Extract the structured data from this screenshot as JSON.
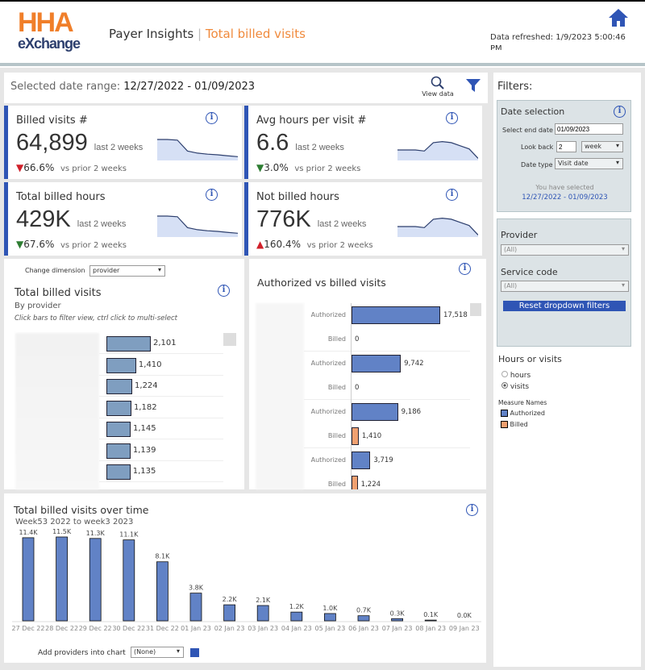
{
  "header": {
    "logo_top": "HHA",
    "logo_bottom": "eXchange",
    "app": "Payer Insights",
    "page": "Total billed visits",
    "refreshed": "Data refreshed: 1/9/2023 5:00:46 PM"
  },
  "toolbar": {
    "range_label": "Selected date range:",
    "range_value": "12/27/2022 - 01/09/2023",
    "view_data": "View data"
  },
  "kpis": [
    {
      "title": "Billed visits #",
      "value": "64,899",
      "period": "last 2 weeks",
      "change": "66.6%",
      "dir": "down",
      "color": "#d0202a",
      "compare": "vs prior 2 weeks",
      "spark": [
        1,
        1,
        0.97,
        0.45,
        0.35,
        0.3,
        0.27,
        0.22,
        0.18
      ]
    },
    {
      "title": "Avg hours per visit #",
      "value": "6.6",
      "period": "last 2 weeks",
      "change": "3.0%",
      "dir": "down",
      "color": "#2e7d32",
      "compare": "vs prior 2 weeks",
      "spark": [
        0.5,
        0.5,
        0.5,
        0.45,
        0.85,
        0.9,
        0.85,
        0.7,
        0.55,
        0.1
      ]
    },
    {
      "title": "Total billed hours",
      "value": "429K",
      "period": "last 2 weeks",
      "change": "67.6%",
      "dir": "down",
      "color": "#2e7d32",
      "compare": "vs prior 2 weeks",
      "spark": [
        1,
        1,
        0.97,
        0.45,
        0.35,
        0.3,
        0.27,
        0.22,
        0.18
      ]
    },
    {
      "title": "Not billed hours",
      "value": "776K",
      "period": "last 2 weeks",
      "change": "160.4%",
      "dir": "up",
      "color": "#d0202a",
      "compare": "vs prior 2 weeks",
      "spark": [
        0.5,
        0.5,
        0.5,
        0.45,
        0.85,
        0.9,
        0.85,
        0.7,
        0.55,
        0.1
      ]
    }
  ],
  "provider_chart": {
    "dimension_label": "Change dimension",
    "dimension_value": "provider",
    "title": "Total billed visits",
    "subtitle": "By provider",
    "hint": "Click bars to filter view, ctrl click to multi-select",
    "values": [
      2101,
      1410,
      1224,
      1182,
      1145,
      1139,
      1135
    ],
    "labels": [
      "2,101",
      "1,410",
      "1,224",
      "1,182",
      "1,145",
      "1,139",
      "1,135"
    ]
  },
  "auth_chart": {
    "title": "Authorized vs billed visits",
    "rows": [
      {
        "measure": "Authorized",
        "value": 17518,
        "label": "17,518"
      },
      {
        "measure": "Billed",
        "value": 0,
        "label": "0"
      },
      {
        "measure": "Authorized",
        "value": 9742,
        "label": "9,742"
      },
      {
        "measure": "Billed",
        "value": 0,
        "label": "0"
      },
      {
        "measure": "Authorized",
        "value": 9186,
        "label": "9,186"
      },
      {
        "measure": "Billed",
        "value": 1410,
        "label": "1,410"
      },
      {
        "measure": "Authorized",
        "value": 3719,
        "label": "3,719"
      },
      {
        "measure": "Billed",
        "value": 1224,
        "label": "1,224"
      }
    ]
  },
  "chart_data": {
    "type": "bar",
    "title": "Total billed visits over time",
    "subtitle": "Week53 2022 to week3 2023",
    "categories": [
      "27 Dec 22",
      "28 Dec 22",
      "29 Dec 22",
      "30 Dec 22",
      "31 Dec 22",
      "01 Jan 23",
      "02 Jan 23",
      "03 Jan 23",
      "04 Jan 23",
      "05 Jan 23",
      "06 Jan 23",
      "07 Jan 23",
      "08 Jan 23",
      "09 Jan 23"
    ],
    "values": [
      11400,
      11500,
      11300,
      11100,
      8100,
      3800,
      2200,
      2100,
      1200,
      1000,
      700,
      300,
      100,
      0
    ],
    "labels": [
      "11.4K",
      "11.5K",
      "11.3K",
      "11.1K",
      "8.1K",
      "3.8K",
      "2.2K",
      "2.1K",
      "1.2K",
      "1.0K",
      "0.7K",
      "0.3K",
      "0.1K",
      "0.0K"
    ],
    "color": "#6182c6"
  },
  "bottom": {
    "add_label": "Add providers into chart",
    "add_value": "(None)"
  },
  "filters": {
    "title": "Filters:",
    "date_title": "Date selection",
    "end_label": "Select end date",
    "end_value": "01/09/2023",
    "lookback_label": "Look back",
    "lookback_value": "2",
    "lookback_unit": "week",
    "datetype_label": "Date type",
    "datetype_value": "Visit date",
    "selected_label": "You have selected",
    "selected_value": "12/27/2022 - 01/09/2023",
    "provider_label": "Provider",
    "provider_value": "(All)",
    "service_label": "Service code",
    "service_value": "(All)",
    "reset": "Reset dropdown filters",
    "hv_title": "Hours or visits",
    "opt_hours": "hours",
    "opt_visits": "visits",
    "legend_title": "Measure Names",
    "legend_auth": "Authorized",
    "legend_billed": "Billed",
    "auth_color": "#6182c6",
    "billed_color": "#f0a070"
  }
}
